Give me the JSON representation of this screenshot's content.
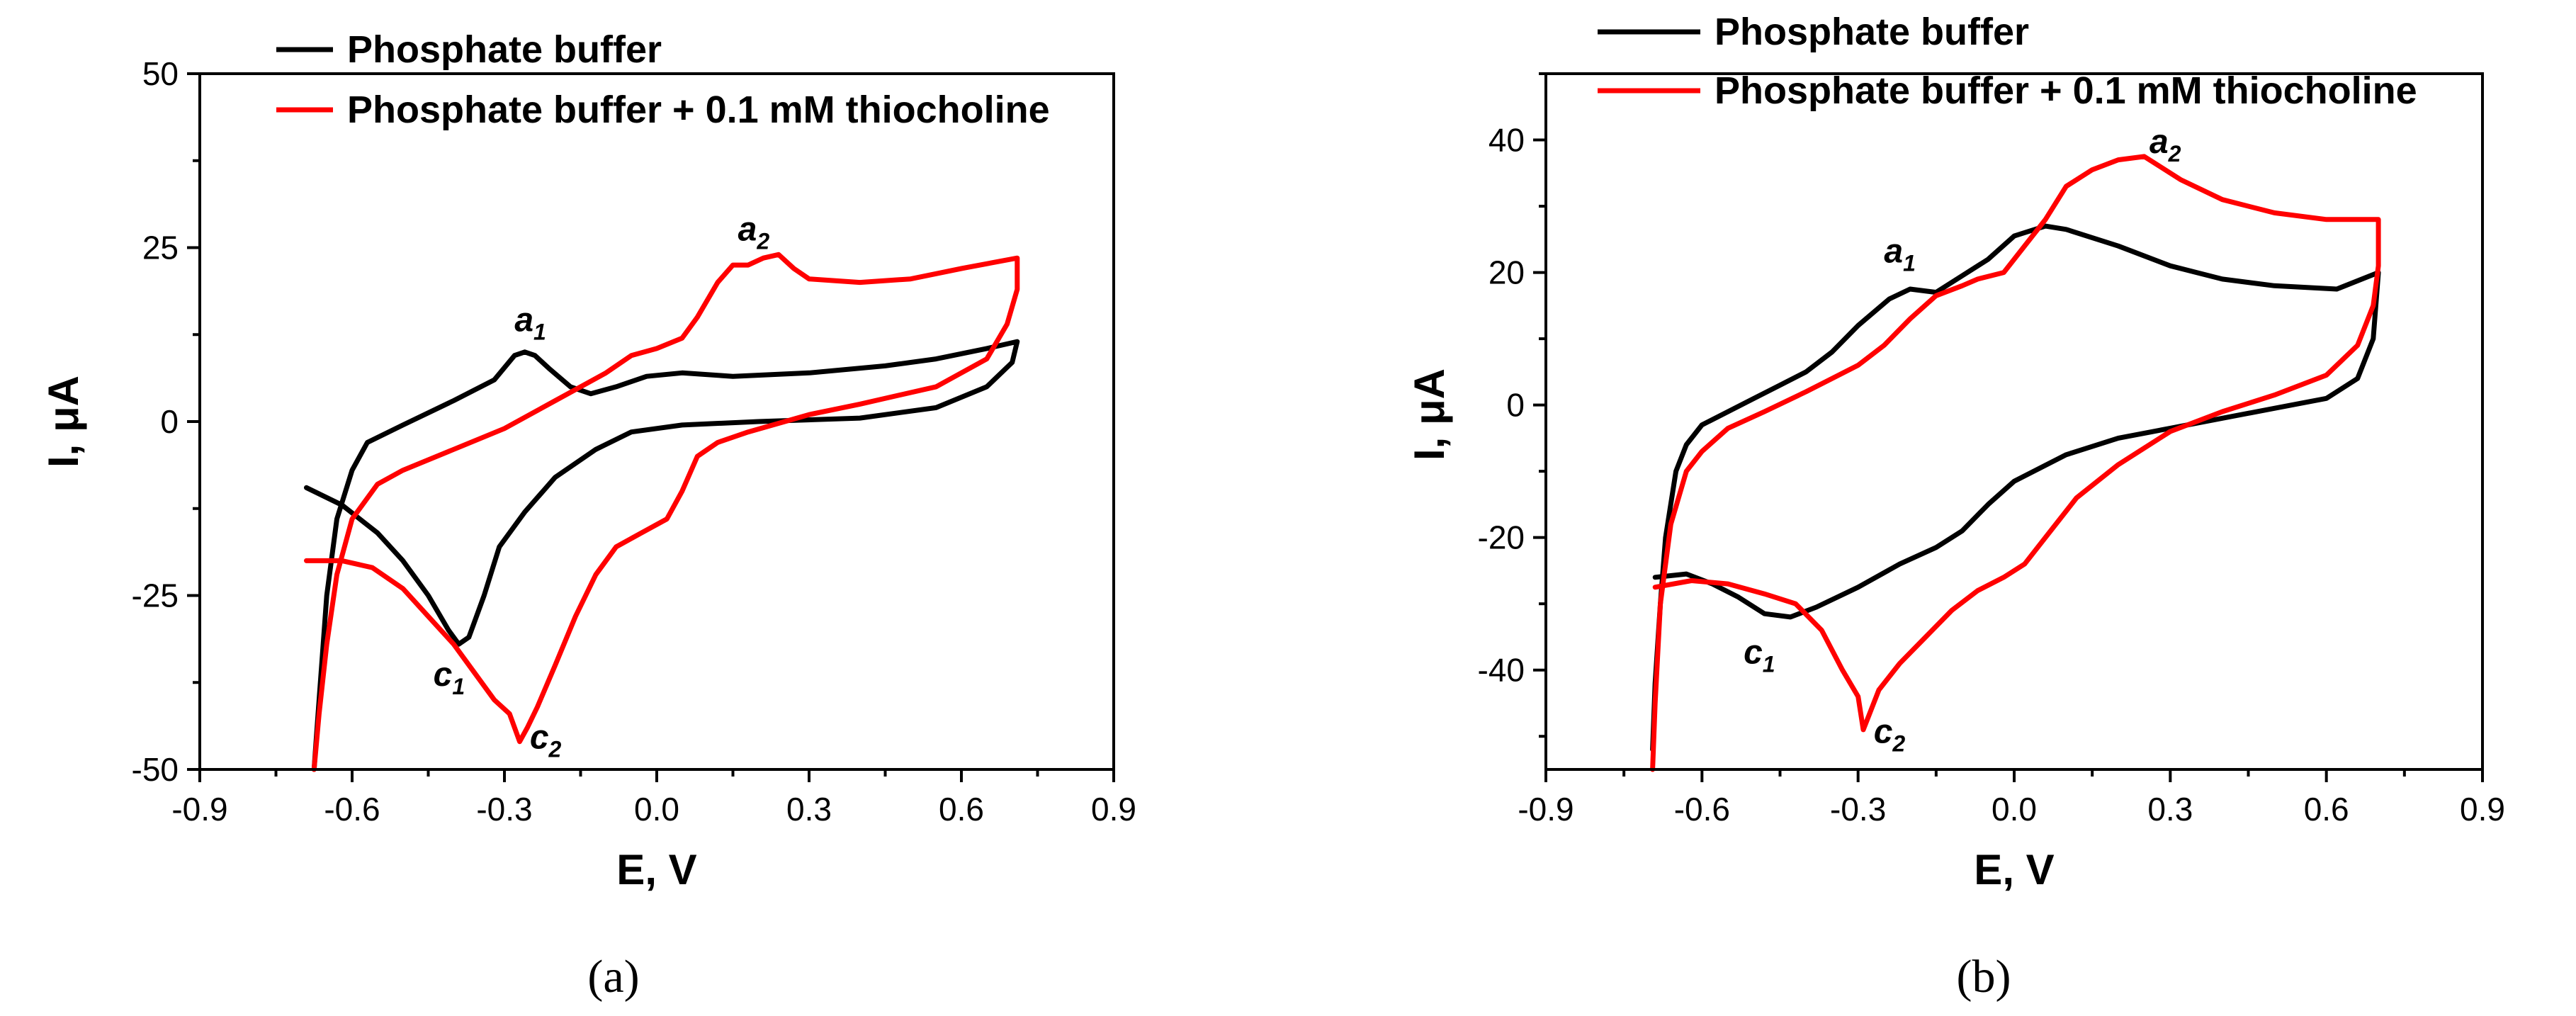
{
  "chart_data": [
    {
      "type": "line",
      "caption": "(a)",
      "xlabel": "E, V",
      "ylabel": "I, μA",
      "xlim": [
        -0.9,
        0.9
      ],
      "ylim": [
        -50,
        50
      ],
      "xticks": [
        -0.9,
        -0.6,
        -0.3,
        0.0,
        0.3,
        0.6,
        0.9
      ],
      "xtick_labels": [
        "-0.9",
        "-0.6",
        "-0.3",
        "0.0",
        "0.3",
        "0.6",
        "0.9"
      ],
      "yticks": [
        -50,
        -25,
        0,
        25,
        50
      ],
      "ytick_labels": [
        "-50",
        "-25",
        "0",
        "25",
        "50"
      ],
      "legend": [
        {
          "label": "Phosphate buffer",
          "color": "#000000"
        },
        {
          "label": "Phosphate buffer + 0.1 mM thiocholine",
          "color": "#ff0000"
        }
      ],
      "annotations": [
        {
          "text": "a",
          "sub": "1",
          "x": -0.28,
          "y": 13
        },
        {
          "text": "a",
          "sub": "2",
          "x": 0.16,
          "y": 26
        },
        {
          "text": "c",
          "sub": "1",
          "x": -0.44,
          "y": -38
        },
        {
          "text": "c",
          "sub": "2",
          "x": -0.25,
          "y": -47
        }
      ],
      "series": [
        {
          "name": "Phosphate buffer",
          "color": "#000000",
          "points": [
            [
              -0.69,
              -9.5
            ],
            [
              -0.62,
              -12
            ],
            [
              -0.55,
              -16
            ],
            [
              -0.5,
              -20
            ],
            [
              -0.45,
              -25
            ],
            [
              -0.41,
              -30
            ],
            [
              -0.39,
              -32
            ],
            [
              -0.37,
              -31
            ],
            [
              -0.34,
              -25
            ],
            [
              -0.31,
              -18
            ],
            [
              -0.26,
              -13
            ],
            [
              -0.2,
              -8
            ],
            [
              -0.12,
              -4
            ],
            [
              -0.05,
              -1.5
            ],
            [
              0.05,
              -0.5
            ],
            [
              0.2,
              0
            ],
            [
              0.4,
              0.5
            ],
            [
              0.55,
              2
            ],
            [
              0.65,
              5
            ],
            [
              0.7,
              8.5
            ],
            [
              0.71,
              11.5
            ],
            [
              0.65,
              10.5
            ],
            [
              0.55,
              9
            ],
            [
              0.45,
              8
            ],
            [
              0.3,
              7
            ],
            [
              0.15,
              6.5
            ],
            [
              0.05,
              7
            ],
            [
              -0.02,
              6.5
            ],
            [
              -0.08,
              5
            ],
            [
              -0.13,
              4
            ],
            [
              -0.17,
              5
            ],
            [
              -0.21,
              7.5
            ],
            [
              -0.24,
              9.5
            ],
            [
              -0.26,
              10
            ],
            [
              -0.28,
              9.5
            ],
            [
              -0.32,
              6
            ],
            [
              -0.4,
              3
            ],
            [
              -0.5,
              -0.5
            ],
            [
              -0.57,
              -3
            ],
            [
              -0.6,
              -7
            ],
            [
              -0.63,
              -14
            ],
            [
              -0.65,
              -25
            ],
            [
              -0.66,
              -35
            ],
            [
              -0.67,
              -45
            ],
            [
              -0.675,
              -50
            ]
          ]
        },
        {
          "name": "Phosphate buffer + 0.1 mM thiocholine",
          "color": "#ff0000",
          "points": [
            [
              -0.69,
              -20
            ],
            [
              -0.62,
              -20
            ],
            [
              -0.56,
              -21
            ],
            [
              -0.5,
              -24
            ],
            [
              -0.45,
              -28
            ],
            [
              -0.4,
              -32
            ],
            [
              -0.36,
              -36
            ],
            [
              -0.32,
              -40
            ],
            [
              -0.29,
              -42
            ],
            [
              -0.27,
              -46
            ],
            [
              -0.255,
              -44
            ],
            [
              -0.235,
              -41
            ],
            [
              -0.2,
              -35
            ],
            [
              -0.16,
              -28
            ],
            [
              -0.12,
              -22
            ],
            [
              -0.08,
              -18
            ],
            [
              -0.03,
              -16
            ],
            [
              0.02,
              -14
            ],
            [
              0.05,
              -10
            ],
            [
              0.08,
              -5
            ],
            [
              0.12,
              -3
            ],
            [
              0.18,
              -1.5
            ],
            [
              0.3,
              1
            ],
            [
              0.4,
              2.5
            ],
            [
              0.55,
              5
            ],
            [
              0.65,
              9
            ],
            [
              0.69,
              14
            ],
            [
              0.71,
              19
            ],
            [
              0.71,
              23.5
            ],
            [
              0.6,
              22
            ],
            [
              0.5,
              20.5
            ],
            [
              0.4,
              20
            ],
            [
              0.3,
              20.5
            ],
            [
              0.27,
              22
            ],
            [
              0.24,
              24
            ],
            [
              0.21,
              23.5
            ],
            [
              0.18,
              22.5
            ],
            [
              0.15,
              22.5
            ],
            [
              0.12,
              20
            ],
            [
              0.08,
              15
            ],
            [
              0.05,
              12
            ],
            [
              0.0,
              10.5
            ],
            [
              -0.05,
              9.5
            ],
            [
              -0.1,
              7
            ],
            [
              -0.15,
              5
            ],
            [
              -0.2,
              3
            ],
            [
              -0.25,
              1
            ],
            [
              -0.3,
              -1
            ],
            [
              -0.4,
              -4
            ],
            [
              -0.5,
              -7
            ],
            [
              -0.55,
              -9
            ],
            [
              -0.6,
              -14
            ],
            [
              -0.63,
              -22
            ],
            [
              -0.65,
              -32
            ],
            [
              -0.665,
              -42
            ],
            [
              -0.675,
              -50
            ]
          ]
        }
      ]
    },
    {
      "type": "line",
      "caption": "(b)",
      "xlabel": "E, V",
      "ylabel": "I, μA",
      "xlim": [
        -0.9,
        0.9
      ],
      "ylim": [
        -55,
        50
      ],
      "xticks": [
        -0.9,
        -0.6,
        -0.3,
        0.0,
        0.3,
        0.6,
        0.9
      ],
      "xtick_labels": [
        "-0.9",
        "-0.6",
        "-0.3",
        "0.0",
        "0.3",
        "0.6",
        "0.9"
      ],
      "yticks": [
        -40,
        -20,
        0,
        20,
        40
      ],
      "ytick_labels": [
        "-40",
        "-20",
        "0",
        "20",
        "40"
      ],
      "legend": [
        {
          "label": "Phosphate buffer",
          "color": "#000000"
        },
        {
          "label": "Phosphate buffer + 0.1 mM thiocholine",
          "color": "#ff0000"
        }
      ],
      "annotations": [
        {
          "text": "a",
          "sub": "1",
          "x": -0.25,
          "y": 21.5
        },
        {
          "text": "a",
          "sub": "2",
          "x": 0.26,
          "y": 38
        },
        {
          "text": "c",
          "sub": "1",
          "x": -0.52,
          "y": -39
        },
        {
          "text": "c",
          "sub": "2",
          "x": -0.27,
          "y": -51
        }
      ],
      "series": [
        {
          "name": "Phosphate buffer",
          "color": "#000000",
          "points": [
            [
              -0.69,
              -26
            ],
            [
              -0.63,
              -25.5
            ],
            [
              -0.58,
              -27
            ],
            [
              -0.53,
              -29
            ],
            [
              -0.48,
              -31.5
            ],
            [
              -0.43,
              -32
            ],
            [
              -0.38,
              -30.5
            ],
            [
              -0.3,
              -27.5
            ],
            [
              -0.22,
              -24
            ],
            [
              -0.15,
              -21.5
            ],
            [
              -0.1,
              -19
            ],
            [
              -0.05,
              -15
            ],
            [
              0.0,
              -11.5
            ],
            [
              0.1,
              -7.5
            ],
            [
              0.2,
              -5
            ],
            [
              0.3,
              -3.5
            ],
            [
              0.4,
              -2
            ],
            [
              0.5,
              -0.5
            ],
            [
              0.6,
              1
            ],
            [
              0.66,
              4
            ],
            [
              0.69,
              10
            ],
            [
              0.7,
              20
            ],
            [
              0.62,
              17.5
            ],
            [
              0.5,
              18
            ],
            [
              0.4,
              19
            ],
            [
              0.3,
              21
            ],
            [
              0.2,
              24
            ],
            [
              0.1,
              26.5
            ],
            [
              0.06,
              27
            ],
            [
              0.0,
              25.5
            ],
            [
              -0.05,
              22
            ],
            [
              -0.1,
              19.5
            ],
            [
              -0.15,
              17
            ],
            [
              -0.2,
              17.5
            ],
            [
              -0.24,
              16
            ],
            [
              -0.3,
              12
            ],
            [
              -0.35,
              8
            ],
            [
              -0.4,
              5
            ],
            [
              -0.45,
              3
            ],
            [
              -0.5,
              1
            ],
            [
              -0.55,
              -1
            ],
            [
              -0.6,
              -3
            ],
            [
              -0.63,
              -6
            ],
            [
              -0.65,
              -10
            ],
            [
              -0.67,
              -20
            ],
            [
              -0.68,
              -30
            ],
            [
              -0.69,
              -42
            ],
            [
              -0.695,
              -52
            ]
          ]
        },
        {
          "name": "Phosphate buffer + 0.1 mM thiocholine",
          "color": "#ff0000",
          "points": [
            [
              -0.69,
              -27.5
            ],
            [
              -0.62,
              -26.5
            ],
            [
              -0.55,
              -27
            ],
            [
              -0.48,
              -28.5
            ],
            [
              -0.42,
              -30
            ],
            [
              -0.37,
              -34
            ],
            [
              -0.33,
              -40
            ],
            [
              -0.3,
              -44
            ],
            [
              -0.29,
              -49
            ],
            [
              -0.28,
              -47
            ],
            [
              -0.26,
              -43
            ],
            [
              -0.22,
              -39
            ],
            [
              -0.17,
              -35
            ],
            [
              -0.12,
              -31
            ],
            [
              -0.07,
              -28
            ],
            [
              -0.02,
              -26
            ],
            [
              0.02,
              -24
            ],
            [
              0.07,
              -19
            ],
            [
              0.12,
              -14
            ],
            [
              0.2,
              -9
            ],
            [
              0.3,
              -4
            ],
            [
              0.4,
              -1
            ],
            [
              0.5,
              1.5
            ],
            [
              0.6,
              4.5
            ],
            [
              0.66,
              9
            ],
            [
              0.69,
              15
            ],
            [
              0.7,
              21
            ],
            [
              0.7,
              28
            ],
            [
              0.6,
              28
            ],
            [
              0.5,
              29
            ],
            [
              0.4,
              31
            ],
            [
              0.32,
              34
            ],
            [
              0.25,
              37.5
            ],
            [
              0.2,
              37
            ],
            [
              0.15,
              35.5
            ],
            [
              0.1,
              33
            ],
            [
              0.06,
              28
            ],
            [
              0.02,
              24
            ],
            [
              -0.02,
              20
            ],
            [
              -0.07,
              19
            ],
            [
              -0.1,
              18
            ],
            [
              -0.15,
              16.5
            ],
            [
              -0.2,
              13
            ],
            [
              -0.25,
              9
            ],
            [
              -0.3,
              6
            ],
            [
              -0.35,
              4
            ],
            [
              -0.4,
              2
            ],
            [
              -0.48,
              -1
            ],
            [
              -0.55,
              -3.5
            ],
            [
              -0.6,
              -7
            ],
            [
              -0.63,
              -10
            ],
            [
              -0.66,
              -18
            ],
            [
              -0.68,
              -30
            ],
            [
              -0.69,
              -45
            ],
            [
              -0.695,
              -55
            ]
          ]
        }
      ]
    }
  ]
}
